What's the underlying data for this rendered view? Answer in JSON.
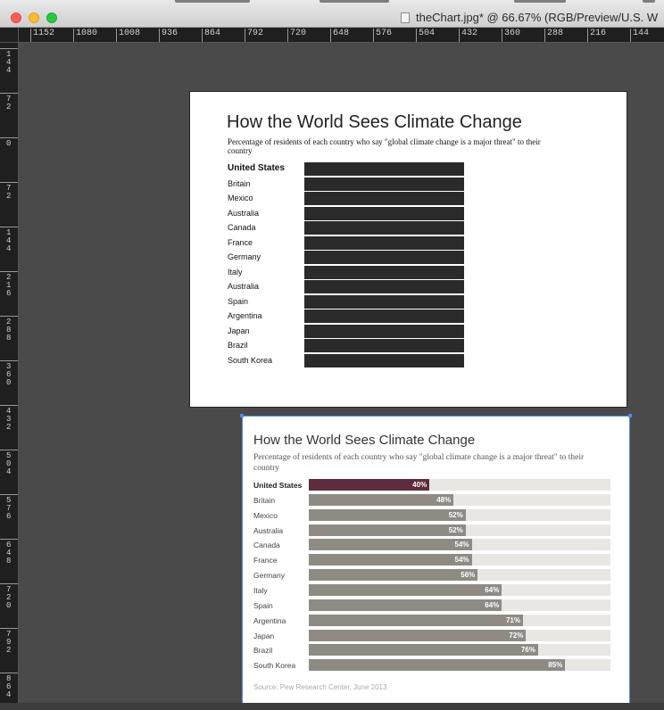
{
  "window": {
    "title": "theChart.jpg* @ 66.67% (RGB/Preview/U.S. W",
    "document_icon": "file-icon"
  },
  "colors": {
    "chrome_bg": "#d6d6d6",
    "canvas_bg": "#4a4a4a",
    "ruler_bg": "#1f1f1f",
    "highlight_bar": "#5e2d3d",
    "other_bar": "#8f8b84",
    "track": "#e9e7e2",
    "selection": "#4a8ef0"
  },
  "rulers": {
    "horizontal": [
      "1152",
      "1080",
      "1008",
      "936",
      "864",
      "792",
      "720",
      "648",
      "576",
      "504",
      "432",
      "360",
      "288",
      "216",
      "144"
    ],
    "vertical": [
      "144",
      "72",
      "0",
      "72",
      "144",
      "216",
      "288",
      "360",
      "432",
      "504",
      "576",
      "648",
      "720",
      "792",
      "864"
    ]
  },
  "old_chart": {
    "title": "How the World Sees Climate Change",
    "subtitle": "Percentage of residents of each country who say \"global climate change is a major threat\" to their country",
    "countries": [
      "United States",
      "Britain",
      "Mexico",
      "Australia",
      "Canada",
      "France",
      "Germany",
      "Italy",
      "Australia",
      "Spain",
      "Argentina",
      "Japan",
      "Brazil",
      "South Korea"
    ]
  },
  "chart_data": {
    "type": "bar",
    "orientation": "horizontal",
    "title": "How the World Sees Climate Change",
    "subtitle": "Percentage of residents of each country who say \"global climate change is a major threat\" to their country",
    "categories": [
      "United States",
      "Britain",
      "Mexico",
      "Australia",
      "Canada",
      "France",
      "Germany",
      "Italy",
      "Spain",
      "Argentina",
      "Japan",
      "Brazil",
      "South Korea"
    ],
    "values": [
      40,
      48,
      52,
      52,
      54,
      54,
      56,
      64,
      64,
      71,
      72,
      76,
      85
    ],
    "labels": [
      "40%",
      "48%",
      "52%",
      "52%",
      "54%",
      "54%",
      "56%",
      "64%",
      "64%",
      "71%",
      "72%",
      "76%",
      "85%"
    ],
    "highlight": "United States",
    "xlim": [
      0,
      100
    ],
    "source": "Source: Pew Research Center, June 2013"
  }
}
